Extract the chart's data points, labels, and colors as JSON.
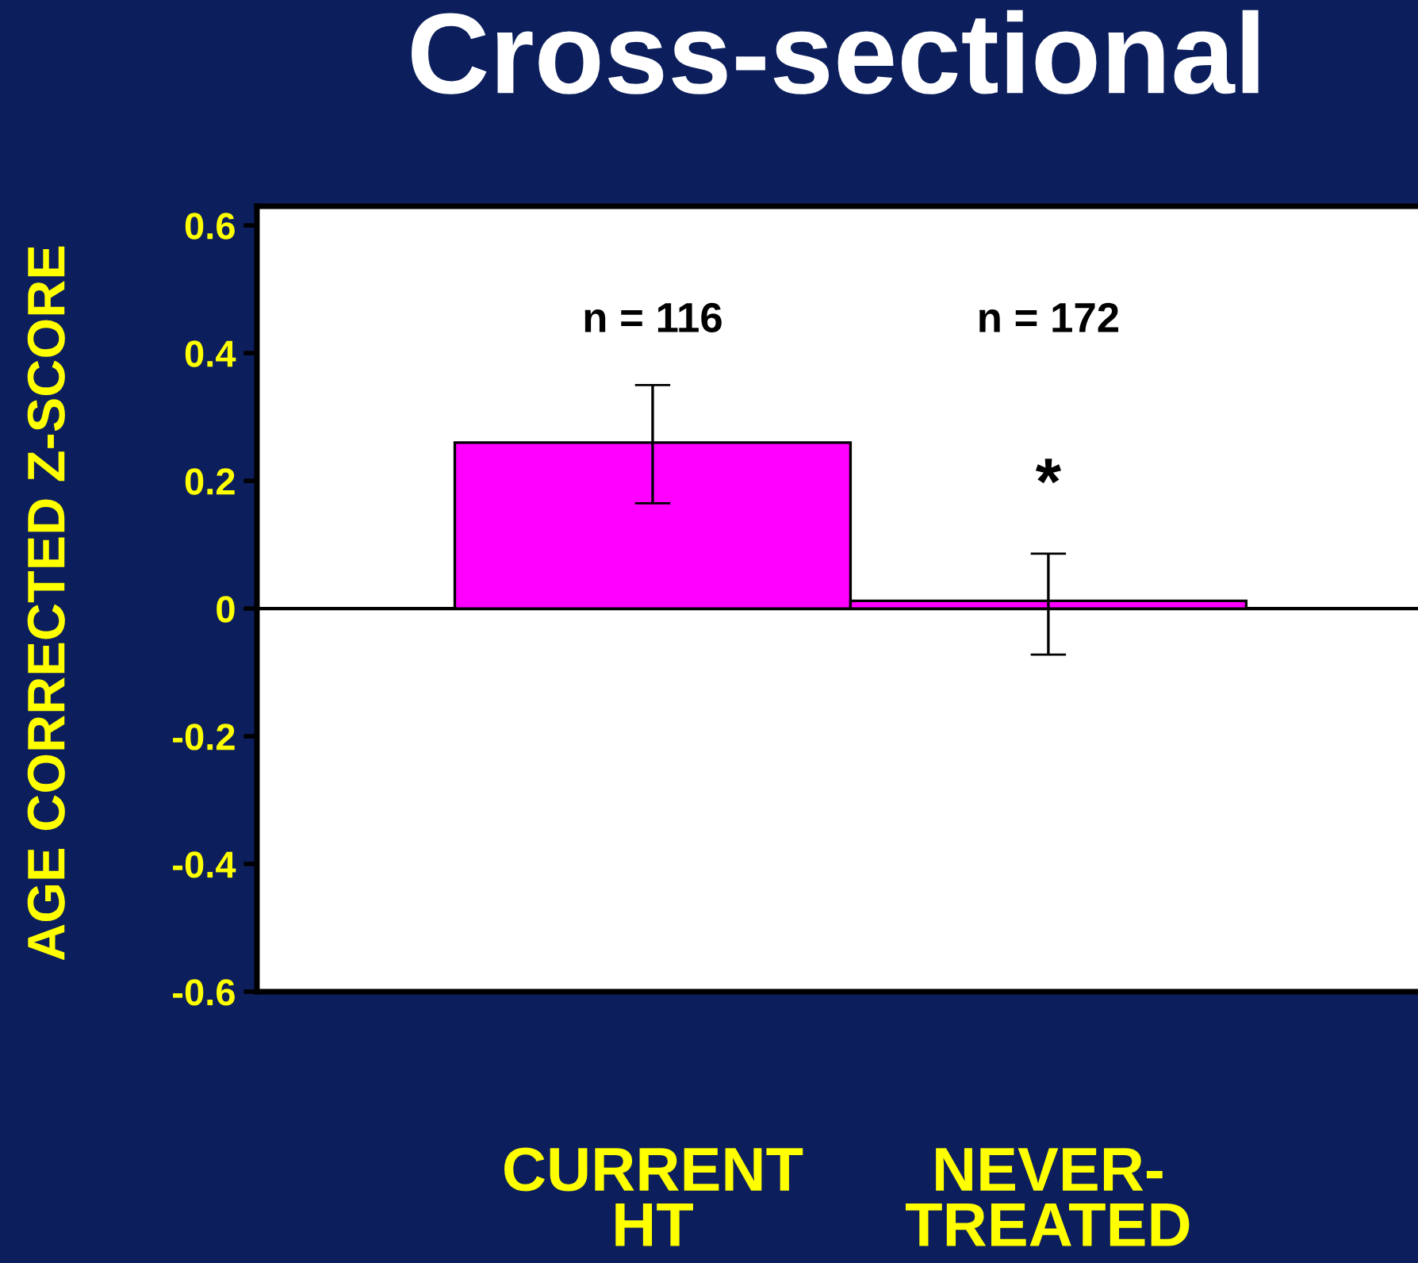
{
  "chart_data": {
    "type": "bar",
    "title": "Cross-sectional",
    "ylabel": "AGE CORRECTED Z-SCORE",
    "categories": [
      "CURRENT\nHT",
      "NEVER-\nTREATED"
    ],
    "values": [
      0.26,
      0.012
    ],
    "errors": [
      [
        0.165,
        0.35
      ],
      [
        -0.072,
        0.086
      ]
    ],
    "color": "#ff00ff",
    "ylim": [
      -0.6,
      0.63
    ],
    "yticks": [
      0.6,
      0.4,
      0.2,
      0,
      -0.2,
      -0.4,
      -0.6
    ],
    "ref_lines": [
      {
        "axis": "y",
        "value": 0,
        "color": "#000000"
      }
    ],
    "annotations": [
      "n = 116",
      "n = 172",
      "*"
    ],
    "grid": false,
    "legend": false
  }
}
